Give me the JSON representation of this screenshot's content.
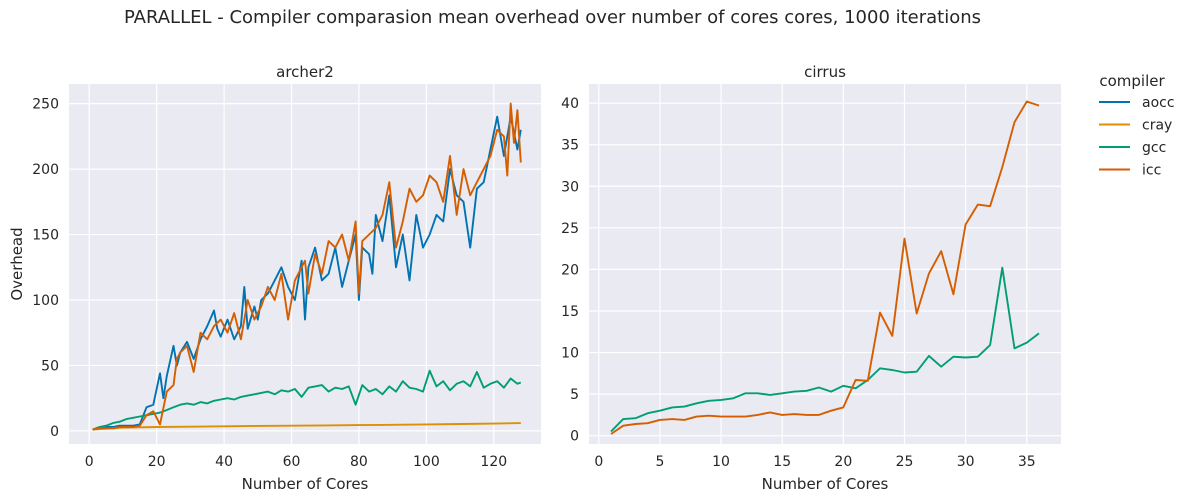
{
  "figure": {
    "title": "PARALLEL - Compiler comparasion mean overhead over number of cores cores, 1000 iterations"
  },
  "legend": {
    "title": "compiler",
    "placement": "right",
    "entries": [
      {
        "name": "aocc",
        "color": "#0173b2"
      },
      {
        "name": "cray",
        "color": "#de8f05"
      },
      {
        "name": "gcc",
        "color": "#029e73"
      },
      {
        "name": "icc",
        "color": "#d55e00"
      }
    ]
  },
  "chart_data": [
    {
      "type": "line",
      "title": "archer2",
      "xlabel": "Number of Cores",
      "ylabel": "Overhead",
      "xlim": [
        -6,
        134
      ],
      "ylim": [
        -10,
        265
      ],
      "xticks": [
        0,
        20,
        40,
        60,
        80,
        100,
        120
      ],
      "yticks": [
        0,
        50,
        100,
        150,
        200,
        250
      ],
      "grid": true,
      "series": [
        {
          "name": "aocc",
          "color": "#0173b2",
          "x": [
            1,
            3,
            5,
            7,
            9,
            11,
            13,
            15,
            17,
            19,
            21,
            22,
            23,
            25,
            26,
            27,
            29,
            31,
            33,
            35,
            37,
            38,
            39,
            41,
            43,
            45,
            46,
            47,
            49,
            50,
            51,
            53,
            55,
            57,
            59,
            61,
            63,
            64,
            65,
            67,
            69,
            71,
            73,
            75,
            77,
            79,
            80,
            81,
            83,
            84,
            85,
            87,
            89,
            91,
            93,
            95,
            97,
            99,
            101,
            103,
            105,
            107,
            109,
            111,
            113,
            115,
            117,
            119,
            121,
            123,
            125,
            127,
            128
          ],
          "y": [
            1,
            2,
            3,
            3,
            4,
            4,
            4,
            5,
            18,
            20,
            44,
            25,
            42,
            65,
            50,
            60,
            68,
            55,
            70,
            80,
            92,
            78,
            72,
            85,
            70,
            80,
            110,
            78,
            95,
            85,
            100,
            105,
            115,
            125,
            110,
            100,
            130,
            85,
            125,
            140,
            115,
            120,
            140,
            110,
            130,
            150,
            100,
            140,
            135,
            120,
            165,
            145,
            180,
            125,
            150,
            115,
            165,
            140,
            150,
            165,
            160,
            200,
            180,
            175,
            140,
            185,
            190,
            215,
            240,
            210,
            240,
            215,
            230
          ]
        },
        {
          "name": "cray",
          "color": "#de8f05",
          "x": [
            1,
            10,
            20,
            30,
            40,
            50,
            60,
            70,
            80,
            90,
            100,
            110,
            120,
            128
          ],
          "y": [
            1,
            2.5,
            3,
            3.2,
            3.5,
            3.8,
            4,
            4.2,
            4.4,
            4.7,
            5,
            5.3,
            5.6,
            6
          ]
        },
        {
          "name": "gcc",
          "color": "#029e73",
          "x": [
            1,
            3,
            5,
            7,
            9,
            11,
            13,
            15,
            17,
            19,
            21,
            23,
            25,
            27,
            29,
            31,
            33,
            35,
            37,
            39,
            41,
            43,
            45,
            47,
            49,
            51,
            53,
            55,
            57,
            59,
            61,
            63,
            65,
            67,
            69,
            71,
            73,
            75,
            77,
            79,
            81,
            83,
            85,
            87,
            89,
            91,
            93,
            95,
            97,
            99,
            101,
            103,
            105,
            107,
            109,
            111,
            113,
            115,
            117,
            119,
            121,
            123,
            125,
            127,
            128
          ],
          "y": [
            1,
            3,
            4,
            6,
            7,
            9,
            10,
            11,
            12,
            13,
            14,
            16,
            18,
            20,
            21,
            20,
            22,
            21,
            23,
            24,
            25,
            24,
            26,
            27,
            28,
            29,
            30,
            28,
            31,
            30,
            32,
            26,
            33,
            34,
            35,
            30,
            33,
            32,
            34,
            20,
            35,
            30,
            32,
            28,
            34,
            30,
            38,
            33,
            32,
            30,
            46,
            34,
            38,
            31,
            36,
            38,
            34,
            45,
            33,
            36,
            38,
            33,
            40,
            36,
            37
          ]
        },
        {
          "name": "icc",
          "color": "#d55e00",
          "x": [
            1,
            3,
            5,
            7,
            9,
            11,
            13,
            15,
            17,
            19,
            21,
            23,
            25,
            26,
            27,
            29,
            31,
            33,
            35,
            37,
            39,
            41,
            43,
            45,
            47,
            49,
            51,
            53,
            55,
            57,
            59,
            61,
            63,
            64,
            65,
            67,
            69,
            71,
            73,
            75,
            77,
            79,
            80,
            81,
            83,
            85,
            87,
            89,
            91,
            93,
            95,
            97,
            99,
            101,
            103,
            105,
            107,
            109,
            111,
            113,
            115,
            117,
            119,
            121,
            123,
            124,
            125,
            126,
            127,
            128
          ],
          "y": [
            1,
            2,
            2,
            2,
            3,
            3,
            3,
            4,
            12,
            15,
            5,
            30,
            35,
            55,
            60,
            65,
            45,
            75,
            70,
            80,
            85,
            75,
            90,
            70,
            100,
            85,
            95,
            110,
            100,
            120,
            85,
            115,
            125,
            130,
            105,
            135,
            120,
            145,
            140,
            150,
            130,
            160,
            105,
            145,
            150,
            155,
            165,
            190,
            140,
            160,
            185,
            175,
            180,
            195,
            190,
            175,
            210,
            165,
            200,
            180,
            190,
            200,
            210,
            230,
            225,
            195,
            250,
            220,
            245,
            205
          ]
        }
      ]
    },
    {
      "type": "line",
      "title": "cirrus",
      "xlabel": "Number of Cores",
      "ylabel": "",
      "xlim": [
        -0.8,
        37.8
      ],
      "ylim": [
        -1,
        42.3
      ],
      "xticks": [
        0,
        5,
        10,
        15,
        20,
        25,
        30,
        35
      ],
      "yticks": [
        0,
        5,
        10,
        15,
        20,
        25,
        30,
        35,
        40
      ],
      "grid": true,
      "series": [
        {
          "name": "gcc",
          "color": "#029e73",
          "x": [
            1,
            2,
            3,
            4,
            5,
            6,
            7,
            8,
            9,
            10,
            11,
            12,
            13,
            14,
            15,
            16,
            17,
            18,
            19,
            20,
            21,
            22,
            23,
            24,
            25,
            26,
            27,
            28,
            29,
            30,
            31,
            32,
            33,
            34,
            35,
            36
          ],
          "y": [
            0.5,
            2.0,
            2.1,
            2.7,
            3.0,
            3.4,
            3.5,
            3.9,
            4.2,
            4.3,
            4.5,
            5.1,
            5.1,
            4.9,
            5.1,
            5.3,
            5.4,
            5.8,
            5.3,
            6.0,
            5.7,
            6.7,
            8.1,
            7.9,
            7.6,
            7.7,
            9.6,
            8.3,
            9.5,
            9.4,
            9.5,
            10.9,
            20.2,
            10.5,
            11.2,
            12.3
          ]
        },
        {
          "name": "icc",
          "color": "#d55e00",
          "x": [
            1,
            2,
            3,
            4,
            5,
            6,
            7,
            8,
            9,
            10,
            11,
            12,
            13,
            14,
            15,
            16,
            17,
            18,
            19,
            20,
            21,
            22,
            23,
            24,
            25,
            26,
            27,
            28,
            29,
            30,
            31,
            32,
            33,
            34,
            35,
            36
          ],
          "y": [
            0.2,
            1.2,
            1.4,
            1.5,
            1.9,
            2.0,
            1.9,
            2.3,
            2.4,
            2.3,
            2.3,
            2.3,
            2.5,
            2.8,
            2.5,
            2.6,
            2.5,
            2.5,
            3.0,
            3.4,
            6.7,
            6.6,
            14.8,
            12.0,
            23.7,
            14.7,
            19.5,
            22.2,
            17.0,
            25.4,
            27.8,
            27.6,
            32.3,
            37.7,
            40.2,
            39.7
          ]
        }
      ]
    }
  ]
}
